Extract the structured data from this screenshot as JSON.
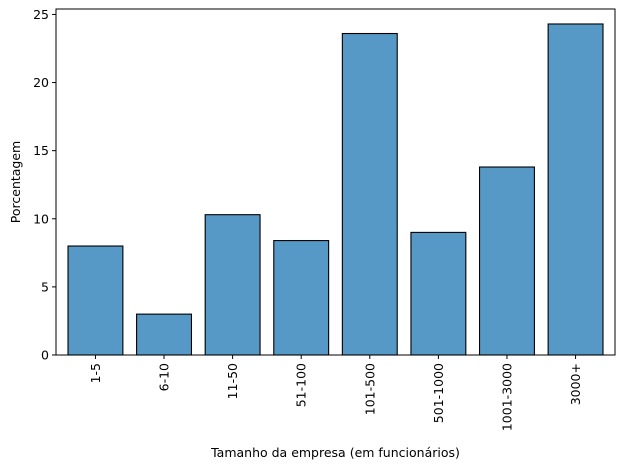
{
  "chart_data": {
    "type": "bar",
    "title": "",
    "xlabel": "Tamanho da empresa (em funcionários)",
    "ylabel": "Porcentagem",
    "categories": [
      "1-5",
      "6-10",
      "11-50",
      "51-100",
      "101-500",
      "501-1000",
      "1001-3000",
      "3000+"
    ],
    "values": [
      8.0,
      3.0,
      10.3,
      8.4,
      23.6,
      9.0,
      13.8,
      24.3
    ],
    "ylim": [
      0,
      25.4
    ],
    "yticks": [
      0,
      5,
      10,
      15,
      20,
      25
    ],
    "grid": false,
    "legend": "none",
    "bar_color": "#5698c6",
    "edge_color": "#000000"
  }
}
